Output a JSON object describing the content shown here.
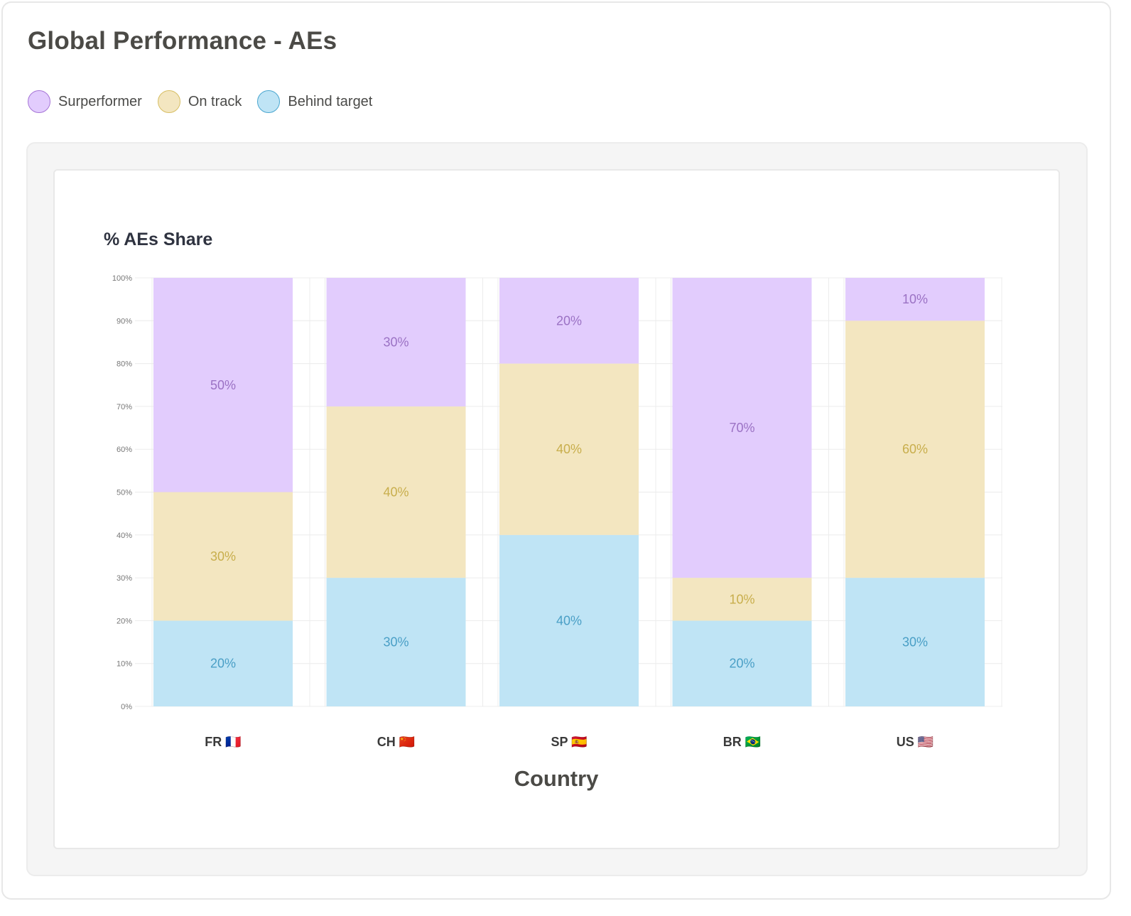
{
  "header": {
    "title": "Global Performance - AEs"
  },
  "legend": [
    {
      "label": "Surperformer",
      "fill": "#e2ccfd",
      "stroke": "#a574d6",
      "icon": "circle-swatch"
    },
    {
      "label": "On track",
      "fill": "#f3e6c0",
      "stroke": "#d7be63",
      "icon": "circle-swatch"
    },
    {
      "label": "Behind target",
      "fill": "#bfe4f5",
      "stroke": "#4aa6cf",
      "icon": "circle-swatch"
    }
  ],
  "chart_data": {
    "type": "bar",
    "stacked": true,
    "title": "% AEs Share",
    "xlabel": "Country",
    "ylabel": "",
    "ylim": [
      0,
      100
    ],
    "yticks": [
      "0%",
      "10%",
      "20%",
      "30%",
      "40%",
      "50%",
      "60%",
      "70%",
      "80%",
      "90%",
      "100%"
    ],
    "categories": [
      "FR 🇫🇷",
      "CH 🇨🇳",
      "SP 🇪🇸",
      "BR 🇧🇷",
      "US 🇺🇸"
    ],
    "series": [
      {
        "name": "Behind target",
        "values": [
          20,
          30,
          40,
          20,
          30
        ],
        "labels": [
          "20%",
          "30%",
          "40%",
          "20%",
          "30%"
        ],
        "fill": "#bfe4f5",
        "text_color": "#4a9fc6"
      },
      {
        "name": "On track",
        "values": [
          30,
          40,
          40,
          10,
          60
        ],
        "labels": [
          "30%",
          "40%",
          "40%",
          "10%",
          "60%"
        ],
        "fill": "#f3e6c0",
        "text_color": "#c8ae4c"
      },
      {
        "name": "Surperformer",
        "values": [
          50,
          30,
          20,
          70,
          10
        ],
        "labels": [
          "50%",
          "30%",
          "20%",
          "70%",
          "10%"
        ],
        "fill": "#e2ccfd",
        "text_color": "#9b72c4"
      }
    ],
    "grid": true
  }
}
